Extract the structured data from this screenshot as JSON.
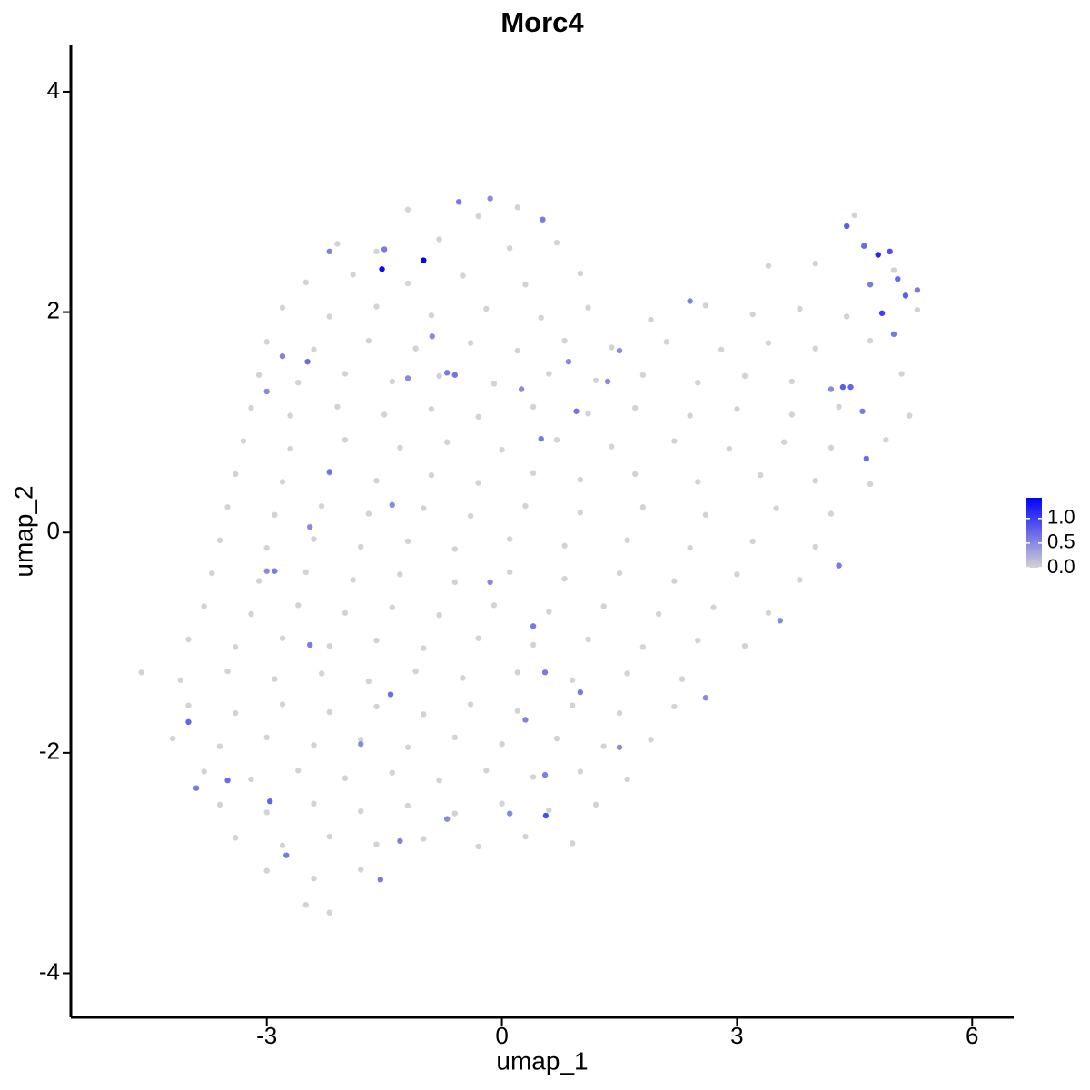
{
  "chart_data": {
    "type": "scatter",
    "title": "Morc4",
    "x_label": "umap_1",
    "y_label": "umap_2",
    "xlim": [
      -5.5,
      6.53
    ],
    "ylim": [
      -4.4,
      4.42
    ],
    "xticks": [
      -3,
      0,
      3,
      6
    ],
    "yticks": [
      -4,
      -2,
      0,
      2,
      4
    ],
    "grid": false,
    "colorbar": {
      "low": "#d3d3d3",
      "high": "#0000ff",
      "range": [
        0,
        1.42
      ],
      "ticks": [
        {
          "value": 0,
          "label": "0.0"
        },
        {
          "value": 0.5,
          "label": "0.5"
        },
        {
          "value": 1,
          "label": "1.0"
        }
      ]
    },
    "x": [
      -1.2,
      -0.3,
      0.2,
      -2.1,
      -1.6,
      -0.8,
      0.1,
      0.7,
      4.5,
      -2.5,
      -1.9,
      -1.2,
      -0.5,
      0.3,
      1.0,
      3.4,
      4.0,
      5.0,
      -2.8,
      -2.2,
      -1.6,
      -0.9,
      -0.2,
      0.5,
      1.1,
      1.9,
      2.6,
      3.2,
      3.8,
      4.4,
      5.3,
      -3.0,
      -2.4,
      -1.7,
      -1.1,
      -0.4,
      0.2,
      0.8,
      1.4,
      2.1,
      2.8,
      3.4,
      4.0,
      4.7,
      -3.1,
      -2.6,
      -2.0,
      -1.4,
      -0.8,
      -0.1,
      0.6,
      1.2,
      1.8,
      2.5,
      3.1,
      3.7,
      5.1,
      -3.2,
      -2.7,
      -2.1,
      -1.5,
      -0.9,
      -0.3,
      0.4,
      1.1,
      1.7,
      2.4,
      3.0,
      3.7,
      4.3,
      5.2,
      -3.3,
      -2.7,
      -2.0,
      -1.3,
      -0.7,
      0.0,
      0.7,
      1.4,
      2.2,
      2.9,
      3.6,
      4.2,
      4.9,
      -3.4,
      -2.8,
      -2.2,
      -1.6,
      -0.9,
      -0.3,
      0.4,
      1.0,
      1.7,
      2.5,
      3.3,
      4.0,
      4.7,
      -3.5,
      -2.9,
      -2.3,
      -1.7,
      -1.0,
      -0.4,
      0.3,
      1.0,
      1.8,
      2.6,
      3.5,
      4.2,
      -3.6,
      -3.0,
      -2.4,
      -1.8,
      -1.2,
      -0.6,
      0.1,
      0.8,
      1.6,
      2.4,
      3.2,
      4.0,
      -3.7,
      -3.1,
      -2.5,
      -1.9,
      -1.3,
      -0.6,
      0.1,
      0.8,
      1.5,
      2.2,
      3.0,
      3.8,
      -3.8,
      -3.2,
      -2.6,
      -2.0,
      -1.4,
      -0.8,
      -0.1,
      0.6,
      1.3,
      2.0,
      2.7,
      3.4,
      -4.0,
      -3.4,
      -2.8,
      -2.2,
      -1.6,
      -1.0,
      -0.3,
      0.4,
      1.1,
      1.8,
      2.5,
      3.1,
      -4.6,
      -4.1,
      -3.5,
      -2.9,
      -2.3,
      -1.7,
      -1.1,
      -0.5,
      0.2,
      0.9,
      1.6,
      2.3,
      -4.0,
      -3.4,
      -2.8,
      -2.2,
      -1.6,
      -1.0,
      -0.4,
      0.2,
      0.9,
      1.5,
      2.2,
      -4.2,
      -3.6,
      -3.0,
      -2.4,
      -1.8,
      -1.2,
      -0.6,
      0.0,
      0.7,
      1.3,
      1.9,
      -3.8,
      -3.2,
      -2.6,
      -2.0,
      -1.4,
      -0.8,
      -0.2,
      0.4,
      1.0,
      1.6,
      -3.6,
      -3.0,
      -2.4,
      -1.8,
      -1.2,
      -0.6,
      0.0,
      0.6,
      1.2,
      -3.4,
      -2.8,
      -2.2,
      -1.6,
      -1.0,
      -0.3,
      0.3,
      0.9,
      -3.0,
      -2.4,
      -1.8,
      -2.5,
      -2.2,
      -1.53,
      -1.0,
      4.8,
      4.85,
      0.56,
      -0.55,
      0.52,
      -1.5,
      -2.2,
      -2.48,
      -3.0,
      -2.8,
      -0.6,
      -0.7,
      -0.89,
      -1.2,
      0.5,
      0.95,
      0.25,
      -2.2,
      -1.4,
      -2.45,
      -2.9,
      -2.45,
      -1.42,
      -0.15,
      0.4,
      0.55,
      0.3,
      -4.0,
      -3.9,
      -3.5,
      -2.96,
      -2.75,
      -1.55,
      -1.3,
      -0.7,
      0.1,
      0.55,
      -1.8,
      4.4,
      4.62,
      4.95,
      5.05,
      5.15,
      5.3,
      4.45,
      4.35,
      4.65,
      4.6,
      4.3,
      3.55,
      2.6,
      1.35,
      1.5,
      2.4,
      1.0,
      1.5,
      -0.15,
      0.85,
      4.2,
      5.0,
      4.7,
      -3.0
    ],
    "y": [
      2.93,
      2.87,
      2.95,
      2.62,
      2.55,
      2.66,
      2.58,
      2.63,
      2.88,
      2.27,
      2.34,
      2.26,
      2.33,
      2.25,
      2.35,
      2.42,
      2.44,
      2.38,
      2.04,
      1.96,
      2.05,
      1.97,
      2.03,
      1.95,
      2.04,
      1.93,
      2.06,
      1.98,
      2.03,
      1.96,
      2.02,
      1.73,
      1.66,
      1.74,
      1.67,
      1.72,
      1.65,
      1.74,
      1.68,
      1.73,
      1.66,
      1.72,
      1.67,
      1.74,
      1.43,
      1.36,
      1.44,
      1.37,
      1.42,
      1.35,
      1.44,
      1.38,
      1.43,
      1.36,
      1.42,
      1.37,
      1.44,
      1.13,
      1.06,
      1.14,
      1.07,
      1.12,
      1.05,
      1.14,
      1.08,
      1.13,
      1.06,
      1.12,
      1.07,
      1.14,
      1.06,
      0.83,
      0.76,
      0.84,
      0.77,
      0.82,
      0.75,
      0.84,
      0.78,
      0.83,
      0.76,
      0.82,
      0.77,
      0.84,
      0.53,
      0.46,
      0.54,
      0.47,
      0.52,
      0.45,
      0.54,
      0.48,
      0.53,
      0.46,
      0.52,
      0.47,
      0.44,
      0.23,
      0.16,
      0.24,
      0.17,
      0.22,
      0.15,
      0.24,
      0.18,
      0.23,
      0.16,
      0.22,
      0.17,
      -0.07,
      -0.14,
      -0.06,
      -0.13,
      -0.08,
      -0.15,
      -0.06,
      -0.12,
      -0.07,
      -0.14,
      -0.08,
      -0.13,
      -0.37,
      -0.44,
      -0.36,
      -0.43,
      -0.38,
      -0.45,
      -0.36,
      -0.42,
      -0.37,
      -0.44,
      -0.38,
      -0.43,
      -0.67,
      -0.74,
      -0.66,
      -0.73,
      -0.68,
      -0.75,
      -0.66,
      -0.72,
      -0.67,
      -0.74,
      -0.68,
      -0.73,
      -0.97,
      -1.04,
      -0.96,
      -1.03,
      -0.98,
      -1.05,
      -0.96,
      -1.02,
      -0.97,
      -1.04,
      -0.98,
      -1.03,
      -1.27,
      -1.34,
      -1.26,
      -1.33,
      -1.28,
      -1.35,
      -1.26,
      -1.32,
      -1.27,
      -1.34,
      -1.28,
      -1.33,
      -1.57,
      -1.64,
      -1.56,
      -1.63,
      -1.58,
      -1.65,
      -1.56,
      -1.62,
      -1.57,
      -1.64,
      -1.58,
      -1.87,
      -1.94,
      -1.86,
      -1.93,
      -1.88,
      -1.95,
      -1.86,
      -1.92,
      -1.87,
      -1.94,
      -1.88,
      -2.17,
      -2.24,
      -2.16,
      -2.23,
      -2.18,
      -2.25,
      -2.16,
      -2.22,
      -2.17,
      -2.24,
      -2.47,
      -2.54,
      -2.46,
      -2.53,
      -2.48,
      -2.55,
      -2.46,
      -2.52,
      -2.47,
      -2.77,
      -2.84,
      -2.76,
      -2.83,
      -2.78,
      -2.85,
      -2.76,
      -2.82,
      -3.07,
      -3.14,
      -3.06,
      -3.38,
      -3.45,
      2.39,
      2.47,
      2.52,
      1.99,
      -2.57,
      3.0,
      2.84,
      2.57,
      2.55,
      1.55,
      1.28,
      1.6,
      1.43,
      1.45,
      1.78,
      1.4,
      0.85,
      1.1,
      1.3,
      0.55,
      0.25,
      0.05,
      -0.35,
      -1.02,
      -1.47,
      -0.45,
      -0.85,
      -1.27,
      -1.7,
      -1.72,
      -2.32,
      -2.25,
      -2.44,
      -2.93,
      -3.15,
      -2.8,
      -2.6,
      -2.55,
      -2.2,
      -1.92,
      2.78,
      2.6,
      2.55,
      2.3,
      2.15,
      2.2,
      1.32,
      1.32,
      0.67,
      1.1,
      -0.3,
      -0.8,
      -1.5,
      1.37,
      1.65,
      2.1,
      -1.45,
      -1.95,
      3.03,
      1.55,
      1.3,
      1.8,
      2.25,
      -0.35
    ],
    "values": [
      0,
      0,
      0,
      0,
      0,
      0,
      0,
      0,
      0,
      0,
      0,
      0,
      0,
      0,
      0,
      0,
      0,
      0,
      0,
      0,
      0,
      0,
      0,
      0,
      0,
      0,
      0,
      0,
      0,
      0,
      0,
      0,
      0,
      0,
      0,
      0,
      0,
      0,
      0,
      0,
      0,
      0,
      0,
      0,
      0,
      0,
      0,
      0,
      0,
      0,
      0,
      0,
      0,
      0,
      0,
      0,
      0,
      0,
      0,
      0,
      0,
      0,
      0,
      0,
      0,
      0,
      0,
      0,
      0,
      0,
      0,
      0,
      0,
      0,
      0,
      0,
      0,
      0,
      0,
      0,
      0,
      0,
      0,
      0,
      0,
      0,
      0,
      0,
      0,
      0,
      0,
      0,
      0,
      0,
      0,
      0,
      0,
      0,
      0,
      0,
      0,
      0,
      0,
      0,
      0,
      0,
      0,
      0,
      0,
      0,
      0,
      0,
      0,
      0,
      0,
      0,
      0,
      0,
      0,
      0,
      0,
      0,
      0,
      0,
      0,
      0,
      0,
      0,
      0,
      0,
      0,
      0,
      0,
      0,
      0,
      0,
      0,
      0,
      0,
      0,
      0,
      0,
      0,
      0,
      0,
      0,
      0,
      0,
      0,
      0,
      0,
      0,
      0,
      0,
      0,
      0,
      0,
      0,
      0,
      0,
      0,
      0,
      0,
      0,
      0,
      0,
      0,
      0,
      0,
      0,
      0,
      0,
      0,
      0,
      0,
      0,
      0,
      0,
      0,
      0,
      0,
      0,
      0,
      0,
      0,
      0,
      0,
      0,
      0,
      0,
      0,
      0,
      0,
      0,
      0,
      0,
      0,
      0,
      0,
      0,
      0,
      0,
      0,
      0,
      0,
      0,
      0,
      0,
      0,
      0,
      0,
      0,
      0,
      0,
      0,
      0,
      0,
      0,
      0,
      0,
      0,
      0,
      0,
      1.35,
      1.4,
      1.2,
      1.0,
      0.9,
      0.6,
      0.6,
      0.6,
      0.55,
      0.7,
      0.5,
      0.55,
      0.65,
      0.6,
      0.5,
      0.5,
      0.6,
      0.65,
      0.5,
      0.65,
      0.5,
      0.5,
      0.6,
      0.6,
      0.7,
      0.5,
      0.6,
      0.6,
      0.55,
      0.75,
      0.6,
      0.7,
      0.75,
      0.6,
      0.6,
      0.55,
      0.5,
      0.5,
      0.55,
      0.5,
      0.8,
      0.7,
      0.9,
      0.7,
      0.8,
      0.6,
      0.75,
      0.8,
      0.7,
      0.6,
      0.6,
      0.5,
      0.5,
      0.5,
      0.5,
      0.55,
      0.6,
      0.5,
      0.5,
      0.5,
      0.5,
      0.6,
      0.6,
      0.5
    ]
  }
}
